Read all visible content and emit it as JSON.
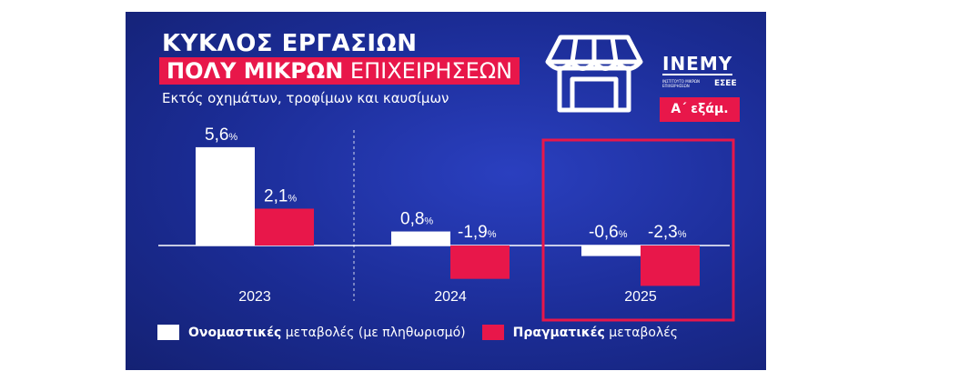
{
  "title_line1": "ΚΥΚΛΟΣ ΕΡΓΑΣΙΩΝ",
  "title_line2_bold": "ΠΟΛΥ ΜΙΚΡΩΝ",
  "title_line2_rest": " ΕΠΙΧΕΙΡΗΣΕΩΝ",
  "subtitle": "Εκτός οχημάτων, τροφίμων και καυσίμων",
  "logo": {
    "name": "INEMY",
    "subtext": "ΙΝΣΤΙΤΟΥΤΟ ΜΙΚΡΩΝ ΕΠΙΧΕΙΡΗΣΕΩΝ",
    "org": "ΕΣΕΕ"
  },
  "quarter_badge": "Α΄ εξάμ.",
  "legend": {
    "nominal_bold": "Ονομαστικές",
    "nominal_rest": " μεταβολές (με πληθωρισμό)",
    "real_bold": "Πραγματικές",
    "real_rest": " μεταβολές"
  },
  "colors": {
    "background": "#1b2c95",
    "accent": "#e8174a",
    "nominal": "#ffffff",
    "real": "#e8174a"
  },
  "icon": "storefront-icon",
  "chart_data": {
    "type": "bar",
    "categories": [
      "2023",
      "2024",
      "2025"
    ],
    "series": [
      {
        "name": "Ονομαστικές μεταβολές (με πληθωρισμό)",
        "values": [
          5.6,
          0.8,
          -0.6
        ],
        "labels": [
          "5,6",
          "0,8",
          "-0,6"
        ]
      },
      {
        "name": "Πραγματικές μεταβολές",
        "values": [
          2.1,
          -1.9,
          -2.3
        ],
        "labels": [
          "2,1",
          "-1,9",
          "-2,3"
        ]
      }
    ],
    "unit": "%",
    "highlighted_category": "2025",
    "legend_position": "bottom"
  }
}
